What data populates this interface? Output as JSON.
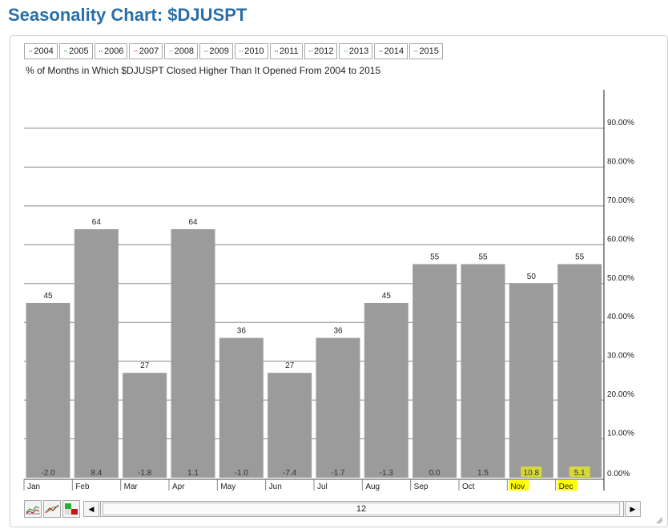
{
  "page": {
    "title": "Seasonality Chart: $DJUSPT"
  },
  "legend": {
    "items": [
      {
        "label": "2004",
        "color": "#8b1a8b"
      },
      {
        "label": "2005",
        "color": "#2e9a2e"
      },
      {
        "label": "2006",
        "color": "#1a1a1a"
      },
      {
        "label": "2007",
        "color": "#a01818"
      },
      {
        "label": "2008",
        "color": "#c07a10"
      },
      {
        "label": "2009",
        "color": "#7a1a9a"
      },
      {
        "label": "2010",
        "color": "#1a5a9a"
      },
      {
        "label": "2011",
        "color": "#333333"
      },
      {
        "label": "2012",
        "color": "#b01ab0"
      },
      {
        "label": "2013",
        "color": "#2ab02a"
      },
      {
        "label": "2014",
        "color": "#1a1a6a"
      },
      {
        "label": "2015",
        "color": "#b01818"
      }
    ]
  },
  "chart_data": {
    "type": "bar",
    "title": "% of Months in Which $DJUSPT Closed Higher Than It Opened From 2004 to 2015",
    "categories": [
      "Jan",
      "Feb",
      "Mar",
      "Apr",
      "May",
      "Jun",
      "Jul",
      "Aug",
      "Sep",
      "Oct",
      "Nov",
      "Dec"
    ],
    "values": [
      45,
      64,
      27,
      64,
      36,
      27,
      36,
      45,
      55,
      55,
      50,
      55
    ],
    "value_labels": [
      "45",
      "64",
      "27",
      "64",
      "36",
      "27",
      "36",
      "45",
      "55",
      "55",
      "50",
      "55"
    ],
    "avg_returns": [
      "-2.0",
      "8.4",
      "-1.8",
      "1.1",
      "-1.0",
      "-7.4",
      "-1.7",
      "-1.3",
      "0.0",
      "1.5",
      "10.8",
      "5.1"
    ],
    "highlighted_months": [
      "Nov",
      "Dec"
    ],
    "ylim": [
      0,
      100
    ],
    "y_ticks": [
      0,
      10,
      20,
      30,
      40,
      50,
      60,
      70,
      80,
      90
    ],
    "y_tick_labels": [
      "0.00%",
      "10.00%",
      "20.00%",
      "30.00%",
      "40.00%",
      "50.00%",
      "60.00%",
      "70.00%",
      "80.00%",
      "90.00%"
    ],
    "y_axis_side": "right",
    "grid": true,
    "bar_color": "#9b9b9b",
    "highlight_color": "#ffff00"
  },
  "scrollbar": {
    "value": "12"
  },
  "toolbar": {
    "icons": [
      "line-chart-icon",
      "multi-line-chart-icon",
      "bar-toggle-icon"
    ]
  }
}
